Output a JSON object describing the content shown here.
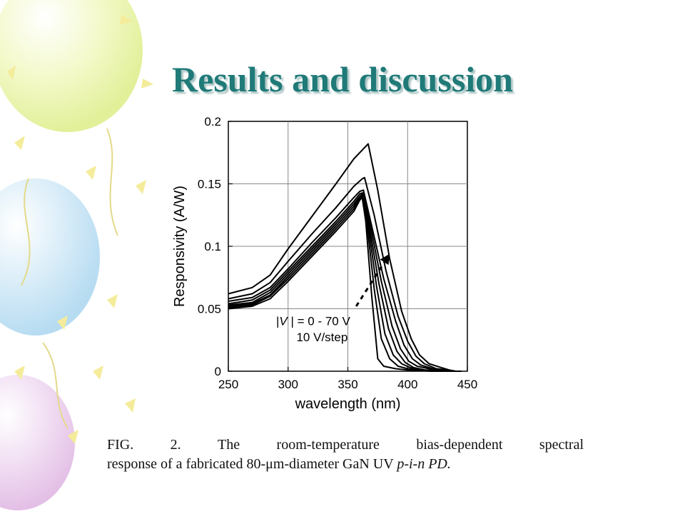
{
  "slide": {
    "title": "Results and discussion"
  },
  "caption": {
    "words_line1": [
      "FIG.",
      "2.",
      "The",
      "room-temperature",
      "bias-dependent",
      "spectral"
    ],
    "line2_plain": "response of a fabricated 80-μm-diameter GaN UV ",
    "line2_italic": "p-i-n PD."
  },
  "colors": {
    "title": "#1f7a78",
    "curves": "#000000",
    "grid": "#888888"
  },
  "chart_data": {
    "type": "line",
    "title": "",
    "xlabel": "wavelength (nm)",
    "ylabel": "Responsivity (A/W)",
    "xlim": [
      250,
      450
    ],
    "ylim": [
      0,
      0.2
    ],
    "xticks": [
      250,
      300,
      350,
      400,
      450
    ],
    "yticks": [
      0,
      0.05,
      0.1,
      0.15,
      0.2
    ],
    "ytick_labels": [
      "0",
      "0.05",
      "0.1",
      "0.15",
      "0.2"
    ],
    "grid": true,
    "annotation": {
      "line1_pre": "|",
      "line1_var": "V",
      "line1_post": " | = 0 - 70 V",
      "line2": "10 V/step",
      "arrow_from": [
        357,
        0.052
      ],
      "arrow_to": [
        385,
        0.094
      ]
    },
    "series": [
      {
        "voltage": 0,
        "x": [
          250,
          270,
          285,
          300,
          320,
          340,
          355,
          360,
          362,
          365,
          370,
          375,
          380,
          390,
          400,
          410,
          420,
          430,
          440
        ],
        "y": [
          0.05,
          0.052,
          0.058,
          0.072,
          0.092,
          0.112,
          0.128,
          0.137,
          0.139,
          0.12,
          0.06,
          0.01,
          0.004,
          0.002,
          0.001,
          0.0005,
          0,
          0,
          0
        ]
      },
      {
        "voltage": 10,
        "x": [
          250,
          270,
          285,
          300,
          320,
          340,
          355,
          360,
          362,
          366,
          372,
          378,
          385,
          392,
          400,
          410,
          420,
          430,
          440
        ],
        "y": [
          0.051,
          0.053,
          0.06,
          0.074,
          0.094,
          0.114,
          0.13,
          0.138,
          0.14,
          0.118,
          0.066,
          0.026,
          0.01,
          0.004,
          0.002,
          0.001,
          0,
          0,
          0
        ]
      },
      {
        "voltage": 20,
        "x": [
          250,
          270,
          285,
          300,
          320,
          340,
          355,
          360,
          362,
          367,
          374,
          381,
          388,
          395,
          402,
          412,
          422,
          432,
          440
        ],
        "y": [
          0.052,
          0.054,
          0.061,
          0.076,
          0.096,
          0.116,
          0.132,
          0.139,
          0.141,
          0.117,
          0.068,
          0.03,
          0.013,
          0.006,
          0.003,
          0.001,
          0,
          0,
          0
        ]
      },
      {
        "voltage": 30,
        "x": [
          250,
          270,
          285,
          300,
          320,
          340,
          355,
          360,
          362,
          368,
          376,
          384,
          391,
          398,
          405,
          415,
          425,
          435,
          440
        ],
        "y": [
          0.053,
          0.055,
          0.063,
          0.078,
          0.098,
          0.118,
          0.134,
          0.14,
          0.142,
          0.116,
          0.07,
          0.034,
          0.016,
          0.007,
          0.003,
          0.001,
          0.0005,
          0,
          0
        ]
      },
      {
        "voltage": 40,
        "x": [
          250,
          270,
          285,
          300,
          320,
          340,
          355,
          360,
          363,
          369,
          378,
          387,
          394,
          401,
          408,
          418,
          428,
          438,
          440
        ],
        "y": [
          0.054,
          0.057,
          0.065,
          0.08,
          0.1,
          0.12,
          0.136,
          0.142,
          0.143,
          0.116,
          0.072,
          0.036,
          0.018,
          0.008,
          0.004,
          0.002,
          0.0005,
          0,
          0
        ]
      },
      {
        "voltage": 50,
        "x": [
          250,
          270,
          285,
          300,
          320,
          340,
          355,
          360,
          363,
          370,
          380,
          390,
          397,
          404,
          411,
          421,
          431,
          440,
          445
        ],
        "y": [
          0.056,
          0.059,
          0.067,
          0.082,
          0.103,
          0.123,
          0.139,
          0.144,
          0.145,
          0.116,
          0.074,
          0.04,
          0.021,
          0.01,
          0.005,
          0.002,
          0.001,
          0,
          0
        ]
      },
      {
        "voltage": 60,
        "x": [
          250,
          270,
          285,
          300,
          320,
          340,
          355,
          362,
          364,
          372,
          382,
          392,
          400,
          407,
          414,
          424,
          434,
          440,
          445
        ],
        "y": [
          0.058,
          0.062,
          0.071,
          0.088,
          0.11,
          0.131,
          0.148,
          0.154,
          0.155,
          0.125,
          0.08,
          0.044,
          0.024,
          0.012,
          0.006,
          0.002,
          0.001,
          0,
          0
        ]
      },
      {
        "voltage": 70,
        "x": [
          250,
          270,
          285,
          300,
          320,
          340,
          355,
          365,
          367,
          375,
          385,
          395,
          403,
          410,
          418,
          428,
          435,
          440,
          445
        ],
        "y": [
          0.062,
          0.067,
          0.077,
          0.098,
          0.124,
          0.15,
          0.17,
          0.18,
          0.182,
          0.145,
          0.09,
          0.048,
          0.026,
          0.013,
          0.006,
          0.003,
          0.001,
          0,
          0
        ]
      }
    ]
  }
}
